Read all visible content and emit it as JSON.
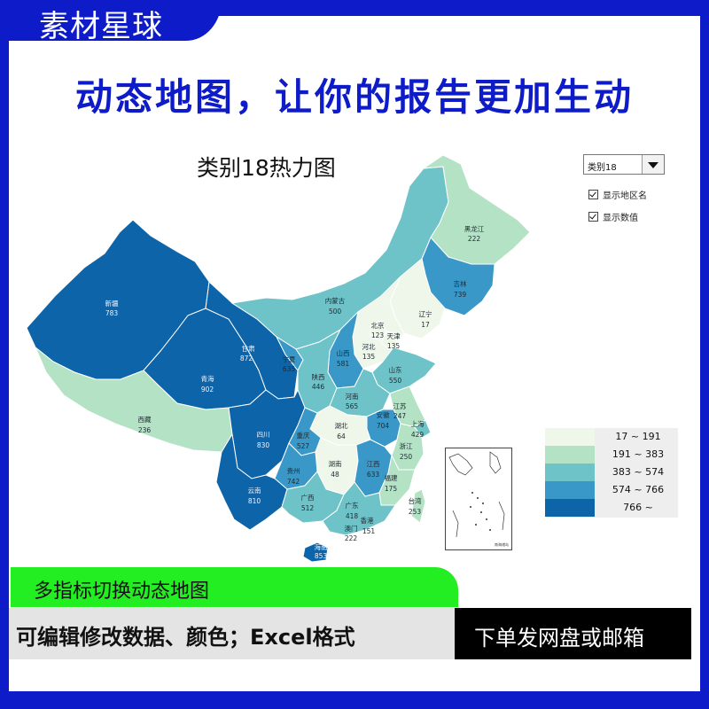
{
  "brand": {
    "name": "素材星球"
  },
  "headline": "动态地图，让你的报告更加生动",
  "map": {
    "title": "类别18热力图",
    "selected_category": "类别18",
    "checkbox_region_names": "显示地区名",
    "checkbox_values": "显示数值",
    "legend": [
      {
        "label": "17 ~ 191",
        "color": "#eef7ea"
      },
      {
        "label": "191 ~ 383",
        "color": "#b4e2c4"
      },
      {
        "label": "383 ~ 574",
        "color": "#6ec3c8"
      },
      {
        "label": "574 ~ 766",
        "color": "#3a98c8"
      },
      {
        "label": "766 ~",
        "color": "#0d64a8"
      }
    ],
    "inset_caption": "南海诸岛",
    "regions": [
      {
        "name": "新疆",
        "value": "783"
      },
      {
        "name": "西藏",
        "value": "236"
      },
      {
        "name": "青海",
        "value": "902"
      },
      {
        "name": "甘肃",
        "value": "872"
      },
      {
        "name": "内蒙古",
        "value": "500"
      },
      {
        "name": "黑龙江",
        "value": "222"
      },
      {
        "name": "吉林",
        "value": "739"
      },
      {
        "name": "辽宁",
        "value": "17"
      },
      {
        "name": "北京",
        "value": "123"
      },
      {
        "name": "天津",
        "value": "135"
      },
      {
        "name": "河北",
        "value": "135"
      },
      {
        "name": "山西",
        "value": "581"
      },
      {
        "name": "山东",
        "value": "550"
      },
      {
        "name": "宁夏",
        "value": "635"
      },
      {
        "name": "陕西",
        "value": "446"
      },
      {
        "name": "河南",
        "value": "565"
      },
      {
        "name": "江苏",
        "value": "247"
      },
      {
        "name": "安徽",
        "value": "704"
      },
      {
        "name": "上海",
        "value": "429"
      },
      {
        "name": "湖北",
        "value": "64"
      },
      {
        "name": "浙江",
        "value": "250"
      },
      {
        "name": "四川",
        "value": "830"
      },
      {
        "name": "重庆",
        "value": "527"
      },
      {
        "name": "湖南",
        "value": "48"
      },
      {
        "name": "江西",
        "value": "633"
      },
      {
        "name": "福建",
        "value": "175"
      },
      {
        "name": "贵州",
        "value": "742"
      },
      {
        "name": "云南",
        "value": "810"
      },
      {
        "name": "广西",
        "value": "512"
      },
      {
        "name": "广东",
        "value": "418"
      },
      {
        "name": "香港",
        "value": "151"
      },
      {
        "name": "澳门",
        "value": "222"
      },
      {
        "name": "台湾",
        "value": "253"
      },
      {
        "name": "海南",
        "value": "853"
      }
    ]
  },
  "promo": {
    "switch_text": "多指标切换动态地图",
    "edit_text": "可编辑修改数据、颜色；Excel格式",
    "delivery_text": "下单发网盘或邮箱"
  }
}
